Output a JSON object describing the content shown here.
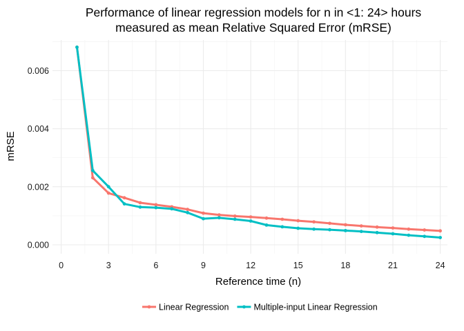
{
  "chart_data": {
    "type": "line",
    "title": "Performance of linear regression models for n in <1: 24> hours",
    "subtitle": "measured as mean Relative Squared Error (mRSE)",
    "xlabel": "Reference time (n)",
    "ylabel": "mRSE",
    "xlim": [
      0,
      24
    ],
    "ylim": [
      0,
      0.0071
    ],
    "x_ticks": [
      "0",
      "3",
      "6",
      "9",
      "12",
      "15",
      "18",
      "21",
      "24"
    ],
    "y_ticks": [
      "0.000",
      "0.002",
      "0.004",
      "0.006"
    ],
    "grid": true,
    "legend_position": "bottom",
    "x": [
      1,
      2,
      3,
      4,
      5,
      6,
      7,
      8,
      9,
      10,
      11,
      12,
      13,
      14,
      15,
      16,
      17,
      18,
      19,
      20,
      21,
      22,
      23,
      24
    ],
    "series": [
      {
        "name": "Linear Regression",
        "color": "#f8766d",
        "values": [
          0.00681,
          0.00231,
          0.00178,
          0.00162,
          0.00145,
          0.00138,
          0.00131,
          0.00122,
          0.00109,
          0.00103,
          0.00099,
          0.00096,
          0.00092,
          0.00088,
          0.00083,
          0.00079,
          0.00074,
          0.00069,
          0.00065,
          0.00061,
          0.00058,
          0.00054,
          0.00051,
          0.00048
        ]
      },
      {
        "name": "Multiple-input Linear Regression",
        "color": "#00bfc4",
        "values": [
          0.00681,
          0.00256,
          0.002,
          0.00141,
          0.0013,
          0.00128,
          0.00124,
          0.00111,
          0.0009,
          0.00093,
          0.00088,
          0.00082,
          0.00068,
          0.00062,
          0.00057,
          0.00054,
          0.00052,
          0.00049,
          0.00046,
          0.00042,
          0.00038,
          0.00033,
          0.00029,
          0.00025
        ]
      }
    ]
  }
}
